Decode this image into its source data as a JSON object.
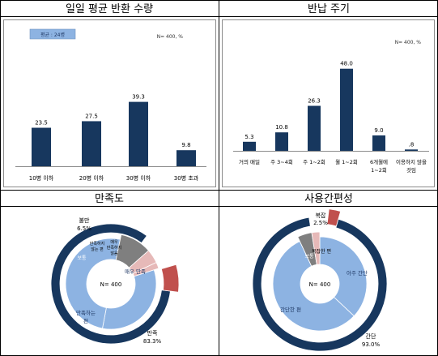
{
  "chart_data": [
    {
      "type": "bar",
      "title": "일일 평균 반환 수량",
      "badge": "평균 : 24병",
      "note": "N= 400, %",
      "categories": [
        "10병 이하",
        "20병 이하",
        "30병 이하",
        "30병 초과"
      ],
      "values": [
        23.5,
        27.5,
        39.3,
        9.8
      ],
      "value_labels": [
        "23.5",
        "27.5",
        "39.3",
        "9.8"
      ],
      "bar_color": "#17375e"
    },
    {
      "type": "bar",
      "title": "반납 주기",
      "note": "N= 400, %",
      "categories": [
        [
          "거의 매일"
        ],
        [
          "주 3~4회"
        ],
        [
          "주 1~2회"
        ],
        [
          "월 1~2회"
        ],
        [
          "6개월에",
          "1~2회"
        ],
        [
          "이용하지 않을",
          "것임"
        ]
      ],
      "values": [
        5.3,
        10.8,
        26.3,
        48.0,
        9.0,
        0.8
      ],
      "value_labels": [
        "5.3",
        "10.8",
        "26.3",
        "48.0",
        "9.0",
        ".8"
      ],
      "bar_color": "#17375e"
    },
    {
      "type": "pie",
      "title": "만족도",
      "center_label": "N= 400",
      "outer_ring": [
        {
          "label": "만족",
          "pct_label": "83.3%",
          "value": 83.3,
          "color": "#17375e"
        },
        {
          "label": "보통",
          "value": 10.2,
          "color": "#ffffff"
        },
        {
          "label": "불만",
          "pct_label": "6.5%",
          "value": 6.5,
          "color": "#c0504d"
        }
      ],
      "inner_ring": [
        {
          "label": "매우 만족",
          "value": 33.0,
          "color": "#8db3e2"
        },
        {
          "label": "만족하는 편",
          "value": 50.3,
          "color": "#8db3e2"
        },
        {
          "label": "보통",
          "value": 10.2,
          "color": "#7f7f7f"
        },
        {
          "label": "만족하지 않는 편",
          "value": 4.5,
          "color": "#e6b9b8"
        },
        {
          "label": "매우 만족하지 않음",
          "value": 2.0,
          "color": "#e6b9b8"
        }
      ]
    },
    {
      "type": "pie",
      "title": "사용간편성",
      "center_label": "N= 400",
      "outer_ring": [
        {
          "label": "간단",
          "pct_label": "93.0%",
          "value": 93.0,
          "color": "#17375e"
        },
        {
          "label": "보통",
          "value": 4.5,
          "color": "#ffffff"
        },
        {
          "label": "복잡",
          "pct_label": "2.5%",
          "value": 2.5,
          "color": "#c0504d"
        }
      ],
      "inner_ring": [
        {
          "label": "아주 간단",
          "value": 37.0,
          "color": "#8db3e2"
        },
        {
          "label": "간단한 편",
          "value": 56.0,
          "color": "#8db3e2"
        },
        {
          "label": "보통",
          "value": 4.5,
          "color": "#7f7f7f"
        },
        {
          "label": "복잡한 편",
          "value": 2.5,
          "color": "#e6b9b8"
        }
      ]
    }
  ]
}
